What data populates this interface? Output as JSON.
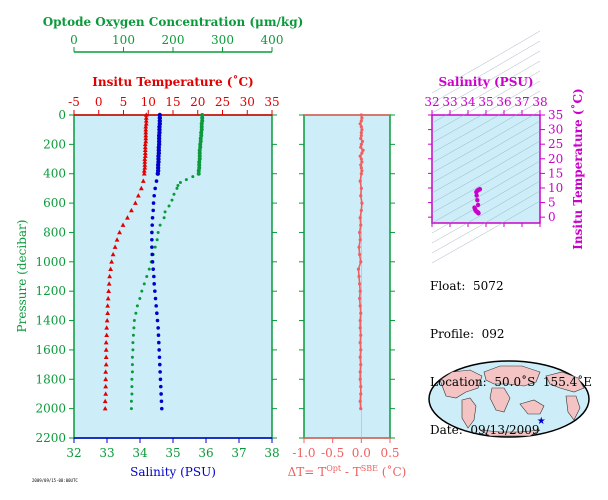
{
  "colors": {
    "oxygen": "#0a9a3a",
    "temperature": "#e00000",
    "salinity": "#0000cc",
    "dT": "#f06060",
    "tsbox": "#cc00cc",
    "panel_bg": "#cdeef8"
  },
  "info": {
    "float": "Float:  5072",
    "profile": "Profile:  092",
    "location": "Location:  50.0˚S  155.4˚E",
    "date": "Date:  09/13/2009"
  },
  "stamp": "2009/09/15-08:00UTC",
  "chart_data": [
    {
      "type": "line",
      "name": "main-profile",
      "ylabel": "Pressure (decibar)",
      "ylim": [
        2200,
        0
      ],
      "yticks": [
        0,
        200,
        400,
        600,
        800,
        1000,
        1200,
        1400,
        1600,
        1800,
        2000,
        2200
      ],
      "axes": {
        "oxygen": {
          "label": "Optode Oxygen Concentration (μm/kg)",
          "ticks": [
            0,
            100,
            200,
            300,
            400
          ],
          "range": [
            0,
            400
          ]
        },
        "temperature": {
          "label": "Insitu Temperature (˚C)",
          "ticks": [
            -5,
            0,
            5,
            10,
            15,
            20,
            25,
            30,
            35
          ],
          "range": [
            -5,
            35
          ]
        },
        "salinity": {
          "label": "Salinity (PSU)",
          "ticks": [
            32,
            33,
            34,
            35,
            36,
            37,
            38
          ],
          "range": [
            32,
            38
          ]
        }
      },
      "series": [
        {
          "name": "Oxygen",
          "axis": "oxygen",
          "pressure": [
            0,
            20,
            40,
            60,
            80,
            100,
            120,
            140,
            160,
            180,
            200,
            220,
            240,
            260,
            280,
            300,
            320,
            340,
            360,
            380,
            400,
            420,
            440,
            460,
            480,
            500,
            540,
            580,
            620,
            660,
            700,
            750,
            800,
            850,
            900,
            950,
            1000,
            1050,
            1100,
            1150,
            1200,
            1250,
            1300,
            1350,
            1400,
            1450,
            1500,
            1550,
            1600,
            1650,
            1700,
            1750,
            1800,
            1850,
            1900,
            1950,
            2000
          ],
          "values": [
            259,
            259,
            259,
            258,
            258,
            258,
            257,
            257,
            256,
            256,
            255,
            255,
            254,
            254,
            254,
            254,
            253,
            253,
            253,
            252,
            252,
            240,
            227,
            215,
            210,
            208,
            202,
            198,
            192,
            184,
            182,
            174,
            170,
            168,
            164,
            160,
            156,
            152,
            147,
            142,
            137,
            133,
            128,
            125,
            122,
            121,
            120,
            119,
            119,
            118,
            118,
            118,
            117,
            117,
            117,
            116,
            116
          ]
        },
        {
          "name": "Temperature",
          "axis": "temperature",
          "pressure": [
            0,
            20,
            40,
            60,
            80,
            100,
            120,
            140,
            160,
            180,
            200,
            220,
            240,
            260,
            280,
            300,
            320,
            340,
            360,
            380,
            400,
            450,
            500,
            550,
            600,
            650,
            700,
            750,
            800,
            850,
            900,
            950,
            1000,
            1050,
            1100,
            1150,
            1200,
            1250,
            1300,
            1350,
            1400,
            1450,
            1500,
            1550,
            1600,
            1650,
            1700,
            1750,
            1800,
            1850,
            1900,
            1950,
            2000
          ],
          "values": [
            9.6,
            9.6,
            9.6,
            9.6,
            9.5,
            9.5,
            9.5,
            9.5,
            9.5,
            9.5,
            9.4,
            9.4,
            9.4,
            9.4,
            9.4,
            9.3,
            9.3,
            9.3,
            9.3,
            9.2,
            9.2,
            9.0,
            8.6,
            8.0,
            7.4,
            6.6,
            5.8,
            4.9,
            4.2,
            3.7,
            3.3,
            2.9,
            2.6,
            2.4,
            2.2,
            2.1,
            2.0,
            1.9,
            1.8,
            1.8,
            1.7,
            1.6,
            1.6,
            1.5,
            1.5,
            1.5,
            1.5,
            1.4,
            1.4,
            1.4,
            1.4,
            1.3,
            1.3
          ]
        },
        {
          "name": "Salinity",
          "axis": "salinity",
          "pressure": [
            0,
            20,
            40,
            60,
            80,
            100,
            120,
            140,
            160,
            180,
            200,
            220,
            240,
            260,
            280,
            300,
            320,
            340,
            360,
            380,
            400,
            450,
            500,
            550,
            600,
            650,
            700,
            750,
            800,
            850,
            900,
            950,
            1000,
            1050,
            1100,
            1150,
            1200,
            1250,
            1300,
            1350,
            1400,
            1450,
            1500,
            1550,
            1600,
            1650,
            1700,
            1750,
            1800,
            1850,
            1900,
            1950,
            2000
          ],
          "values": [
            34.6,
            34.6,
            34.6,
            34.6,
            34.59,
            34.59,
            34.59,
            34.58,
            34.58,
            34.58,
            34.58,
            34.57,
            34.57,
            34.57,
            34.56,
            34.56,
            34.56,
            34.55,
            34.55,
            34.55,
            34.54,
            34.5,
            34.46,
            34.43,
            34.41,
            34.4,
            34.38,
            34.37,
            34.36,
            34.36,
            34.36,
            34.37,
            34.38,
            34.4,
            34.42,
            34.43,
            34.45,
            34.47,
            34.49,
            34.51,
            34.53,
            34.55,
            34.56,
            34.57,
            34.58,
            34.59,
            34.6,
            34.61,
            34.62,
            34.63,
            34.64,
            34.65,
            34.66
          ]
        }
      ]
    },
    {
      "type": "line",
      "name": "delta-T",
      "xlabel_parts": [
        "ΔT= T",
        "Opt",
        " - T",
        "SBE",
        " (˚C)"
      ],
      "xlim": [
        -1.0,
        0.5
      ],
      "xticks": [
        -1.0,
        -0.5,
        0.0,
        0.5
      ],
      "ylim": [
        2200,
        0
      ],
      "series": [
        {
          "name": "dT",
          "pressure": [
            0,
            20,
            40,
            60,
            80,
            100,
            120,
            140,
            160,
            180,
            200,
            220,
            240,
            260,
            280,
            300,
            320,
            340,
            360,
            380,
            400,
            450,
            500,
            550,
            600,
            650,
            700,
            750,
            800,
            850,
            900,
            950,
            1000,
            1050,
            1100,
            1150,
            1200,
            1250,
            1300,
            1350,
            1400,
            1450,
            1500,
            1550,
            1600,
            1650,
            1700,
            1750,
            1800,
            1850,
            1900,
            1950,
            2000
          ],
          "values": [
            0.0,
            0.01,
            0.0,
            -0.02,
            0.0,
            0.01,
            0.0,
            0.0,
            -0.01,
            0.02,
            0.0,
            -0.01,
            0.03,
            0.01,
            -0.02,
            0.0,
            0.01,
            -0.01,
            0.0,
            0.01,
            0.0,
            -0.02,
            0.0,
            -0.01,
            0.01,
            0.0,
            -0.02,
            -0.01,
            -0.03,
            -0.02,
            -0.04,
            -0.03,
            -0.01,
            -0.05,
            -0.04,
            -0.03,
            -0.02,
            -0.03,
            -0.02,
            -0.01,
            -0.02,
            -0.02,
            -0.01,
            -0.02,
            -0.01,
            -0.02,
            -0.01,
            -0.02,
            -0.02,
            -0.01,
            -0.01,
            -0.02,
            -0.01
          ]
        }
      ]
    },
    {
      "type": "scatter",
      "name": "TS-diagram",
      "xlabel": "Salinity (PSU)",
      "ylabel": "Insitu Temperature (˚C)",
      "xlim": [
        32,
        38
      ],
      "ylim": [
        -2,
        35
      ],
      "xticks": [
        32,
        33,
        34,
        35,
        36,
        37,
        38
      ],
      "yticks": [
        0,
        5,
        10,
        15,
        20,
        25,
        30,
        35
      ],
      "points_salinity": [
        34.36,
        34.38,
        34.4,
        34.43,
        34.46,
        34.5,
        34.54,
        34.55,
        34.56,
        34.57,
        34.58,
        34.58,
        34.56,
        34.52,
        34.48,
        34.46,
        34.5,
        34.55,
        34.6,
        34.64,
        34.66
      ],
      "points_temperature": [
        3.3,
        3.0,
        2.6,
        2.2,
        2.0,
        1.8,
        1.7,
        1.6,
        1.5,
        1.5,
        1.4,
        1.3,
        4.2,
        5.8,
        7.4,
        8.6,
        9.0,
        9.2,
        9.4,
        9.5,
        9.6
      ]
    },
    {
      "type": "map",
      "name": "location-map",
      "marker_lat": -50.0,
      "marker_lon": 155.4
    }
  ]
}
